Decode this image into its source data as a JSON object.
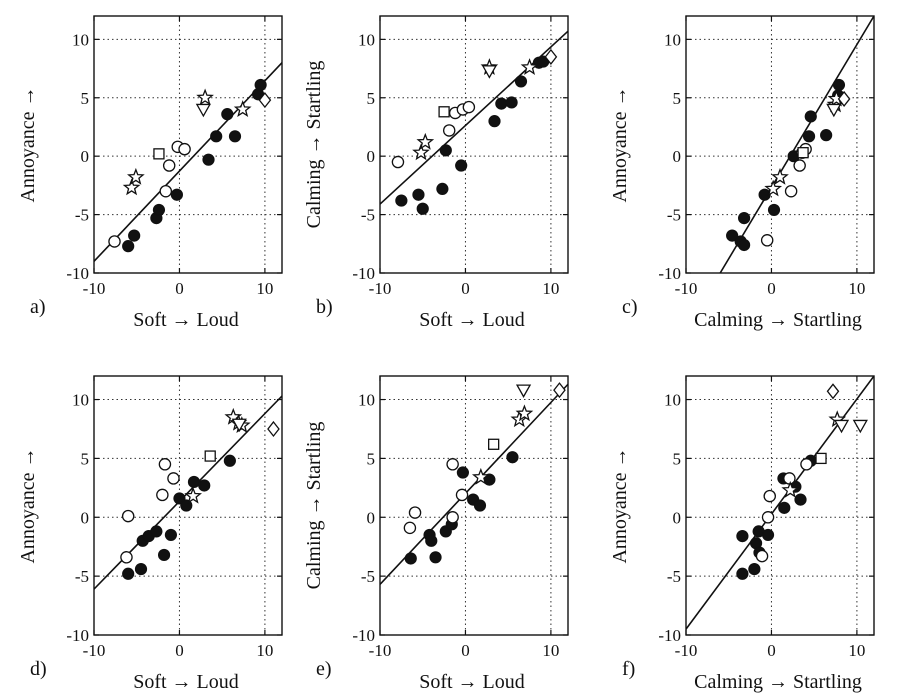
{
  "chart_data": [
    {
      "panel_label": "a)",
      "type": "scatter",
      "xlabel": "Soft → Loud",
      "ylabel": "Annoyance →",
      "xlim": [
        -10,
        12
      ],
      "ylim": [
        -10,
        12
      ],
      "xticks": [
        -10,
        0,
        10
      ],
      "yticks": [
        -10,
        -5,
        0,
        5,
        10
      ],
      "tick_labels_x": [
        "-10",
        "0",
        "10"
      ],
      "tick_labels_y": [
        "-10",
        "-5",
        "0",
        "5",
        "10"
      ],
      "grid": true,
      "fit_line": [
        [
          -10,
          -9
        ],
        [
          12,
          8
        ]
      ],
      "points": [
        {
          "m": "filled-circle",
          "x": -6.0,
          "y": -7.7
        },
        {
          "m": "filled-circle",
          "x": -5.3,
          "y": -6.8
        },
        {
          "m": "filled-circle",
          "x": -2.7,
          "y": -5.3
        },
        {
          "m": "filled-circle",
          "x": -2.4,
          "y": -4.6
        },
        {
          "m": "filled-circle",
          "x": -0.3,
          "y": -3.3
        },
        {
          "m": "filled-circle",
          "x": 3.4,
          "y": -0.3
        },
        {
          "m": "filled-circle",
          "x": 4.3,
          "y": 1.7
        },
        {
          "m": "filled-circle",
          "x": 5.6,
          "y": 3.6
        },
        {
          "m": "filled-circle",
          "x": 6.5,
          "y": 1.7
        },
        {
          "m": "filled-circle",
          "x": 9.2,
          "y": 5.3
        },
        {
          "m": "filled-circle",
          "x": 9.5,
          "y": 6.1
        },
        {
          "m": "open-circle",
          "x": -7.6,
          "y": -7.3
        },
        {
          "m": "open-circle",
          "x": -1.6,
          "y": -3.0
        },
        {
          "m": "open-circle",
          "x": -1.2,
          "y": -0.8
        },
        {
          "m": "open-circle",
          "x": -0.2,
          "y": 0.8
        },
        {
          "m": "open-circle",
          "x": 0.6,
          "y": 0.6
        },
        {
          "m": "open-square",
          "x": -2.4,
          "y": 0.2
        },
        {
          "m": "open-star",
          "x": -5.6,
          "y": -2.7
        },
        {
          "m": "open-star",
          "x": -5.1,
          "y": -1.8
        },
        {
          "m": "open-star",
          "x": 3.0,
          "y": 5.0
        },
        {
          "m": "open-star",
          "x": 7.4,
          "y": 4.0
        },
        {
          "m": "open-triangle-down",
          "x": 2.8,
          "y": 4.0
        },
        {
          "m": "open-diamond",
          "x": 10.0,
          "y": 4.8
        }
      ]
    },
    {
      "panel_label": "b)",
      "type": "scatter",
      "xlabel": "Soft → Loud",
      "ylabel": "Calming → Startling",
      "xlim": [
        -10,
        12
      ],
      "ylim": [
        -10,
        12
      ],
      "xticks": [
        -10,
        0,
        10
      ],
      "yticks": [
        -10,
        -5,
        0,
        5,
        10
      ],
      "tick_labels_x": [
        "-10",
        "0",
        "10"
      ],
      "tick_labels_y": [
        "-10",
        "-5",
        "0",
        "5",
        "10"
      ],
      "grid": true,
      "fit_line": [
        [
          -10,
          -4.1
        ],
        [
          12,
          10.7
        ]
      ],
      "points": [
        {
          "m": "filled-circle",
          "x": -7.5,
          "y": -3.8
        },
        {
          "m": "filled-circle",
          "x": -5.5,
          "y": -3.3
        },
        {
          "m": "filled-circle",
          "x": -5.0,
          "y": -4.5
        },
        {
          "m": "filled-circle",
          "x": -2.7,
          "y": -2.8
        },
        {
          "m": "filled-circle",
          "x": -2.3,
          "y": 0.5
        },
        {
          "m": "filled-circle",
          "x": -0.5,
          "y": -0.8
        },
        {
          "m": "filled-circle",
          "x": 3.4,
          "y": 3.0
        },
        {
          "m": "filled-circle",
          "x": 4.2,
          "y": 4.5
        },
        {
          "m": "filled-circle",
          "x": 5.4,
          "y": 4.6
        },
        {
          "m": "filled-circle",
          "x": 6.5,
          "y": 6.4
        },
        {
          "m": "filled-circle",
          "x": 8.6,
          "y": 8.0
        },
        {
          "m": "filled-circle",
          "x": 9.1,
          "y": 8.1
        },
        {
          "m": "open-circle",
          "x": -7.9,
          "y": -0.5
        },
        {
          "m": "open-circle",
          "x": -1.9,
          "y": 2.2
        },
        {
          "m": "open-circle",
          "x": -1.2,
          "y": 3.7
        },
        {
          "m": "open-circle",
          "x": -0.3,
          "y": 4.0
        },
        {
          "m": "open-circle",
          "x": 0.4,
          "y": 4.2
        },
        {
          "m": "open-square",
          "x": -2.5,
          "y": 3.8
        },
        {
          "m": "open-star",
          "x": -5.2,
          "y": 0.3
        },
        {
          "m": "open-star",
          "x": -4.7,
          "y": 1.2
        },
        {
          "m": "open-star",
          "x": 2.8,
          "y": 7.6
        },
        {
          "m": "open-star",
          "x": 7.5,
          "y": 7.6
        },
        {
          "m": "open-triangle-down",
          "x": 2.8,
          "y": 7.3
        },
        {
          "m": "open-diamond",
          "x": 10.0,
          "y": 8.5
        }
      ]
    },
    {
      "panel_label": "c)",
      "type": "scatter",
      "xlabel": "Calming → Startling",
      "ylabel": "Annoyance →",
      "xlim": [
        -10,
        12
      ],
      "ylim": [
        -10,
        12
      ],
      "xticks": [
        -10,
        0,
        10
      ],
      "yticks": [
        -10,
        -5,
        0,
        5,
        10
      ],
      "tick_labels_x": [
        "-10",
        "0",
        "10"
      ],
      "tick_labels_y": [
        "-10",
        "-5",
        "0",
        "5",
        "10"
      ],
      "grid": true,
      "fit_line": [
        [
          -6,
          -10
        ],
        [
          12,
          12
        ]
      ],
      "points": [
        {
          "m": "filled-circle",
          "x": -4.6,
          "y": -6.8
        },
        {
          "m": "filled-circle",
          "x": -3.6,
          "y": -7.3
        },
        {
          "m": "filled-circle",
          "x": -3.2,
          "y": -7.6
        },
        {
          "m": "filled-circle",
          "x": -3.2,
          "y": -5.3
        },
        {
          "m": "filled-circle",
          "x": -0.8,
          "y": -3.3
        },
        {
          "m": "filled-circle",
          "x": 0.3,
          "y": -4.6
        },
        {
          "m": "filled-circle",
          "x": 2.6,
          "y": 0.0
        },
        {
          "m": "filled-circle",
          "x": 4.4,
          "y": 1.7
        },
        {
          "m": "filled-circle",
          "x": 4.6,
          "y": 3.4
        },
        {
          "m": "filled-circle",
          "x": 6.4,
          "y": 1.8
        },
        {
          "m": "filled-circle",
          "x": 7.8,
          "y": 5.2
        },
        {
          "m": "filled-circle",
          "x": 7.9,
          "y": 6.1
        },
        {
          "m": "open-circle",
          "x": -0.5,
          "y": -7.2
        },
        {
          "m": "open-circle",
          "x": 2.3,
          "y": -3.0
        },
        {
          "m": "open-circle",
          "x": 3.3,
          "y": -0.8
        },
        {
          "m": "open-circle",
          "x": 3.6,
          "y": 0.3
        },
        {
          "m": "open-circle",
          "x": 4.0,
          "y": 0.6
        },
        {
          "m": "open-square",
          "x": 3.7,
          "y": 0.3
        },
        {
          "m": "open-star",
          "x": 0.2,
          "y": -2.8
        },
        {
          "m": "open-star",
          "x": 1.0,
          "y": -1.8
        },
        {
          "m": "open-star",
          "x": 7.5,
          "y": 4.4
        },
        {
          "m": "open-star",
          "x": 7.6,
          "y": 4.9
        },
        {
          "m": "open-triangle-down",
          "x": 7.3,
          "y": 4.0
        },
        {
          "m": "open-diamond",
          "x": 8.5,
          "y": 4.9
        }
      ]
    },
    {
      "panel_label": "d)",
      "type": "scatter",
      "xlabel": "Soft → Loud",
      "ylabel": "Annoyance →",
      "xlim": [
        -10,
        12
      ],
      "ylim": [
        -10,
        12
      ],
      "xticks": [
        -10,
        0,
        10
      ],
      "yticks": [
        -10,
        -5,
        0,
        5,
        10
      ],
      "tick_labels_x": [
        "-10",
        "0",
        "10"
      ],
      "tick_labels_y": [
        "-10",
        "-5",
        "0",
        "5",
        "10"
      ],
      "grid": true,
      "fit_line": [
        [
          -10,
          -6.1
        ],
        [
          12,
          10.3
        ]
      ],
      "points": [
        {
          "m": "filled-circle",
          "x": -6.0,
          "y": -4.8
        },
        {
          "m": "filled-circle",
          "x": -4.5,
          "y": -4.4
        },
        {
          "m": "filled-circle",
          "x": -4.3,
          "y": -2.0
        },
        {
          "m": "filled-circle",
          "x": -3.6,
          "y": -1.6
        },
        {
          "m": "filled-circle",
          "x": -2.7,
          "y": -1.2
        },
        {
          "m": "filled-circle",
          "x": -1.8,
          "y": -3.2
        },
        {
          "m": "filled-circle",
          "x": -1.0,
          "y": -1.5
        },
        {
          "m": "filled-circle",
          "x": 0.0,
          "y": 1.6
        },
        {
          "m": "filled-circle",
          "x": 0.8,
          "y": 1.0
        },
        {
          "m": "filled-circle",
          "x": 1.7,
          "y": 3.0
        },
        {
          "m": "filled-circle",
          "x": 2.9,
          "y": 2.7
        },
        {
          "m": "filled-circle",
          "x": 5.9,
          "y": 4.8
        },
        {
          "m": "open-circle",
          "x": -6.2,
          "y": -3.4
        },
        {
          "m": "open-circle",
          "x": -6.0,
          "y": 0.1
        },
        {
          "m": "open-circle",
          "x": -2.0,
          "y": 1.9
        },
        {
          "m": "open-circle",
          "x": -1.7,
          "y": 4.5
        },
        {
          "m": "open-circle",
          "x": -0.7,
          "y": 3.3
        },
        {
          "m": "open-square",
          "x": 3.6,
          "y": 5.2
        },
        {
          "m": "open-star",
          "x": 1.6,
          "y": 1.8
        },
        {
          "m": "open-star",
          "x": 6.3,
          "y": 8.5
        },
        {
          "m": "open-star",
          "x": 6.9,
          "y": 8.0
        },
        {
          "m": "open-star",
          "x": 7.3,
          "y": 7.8
        },
        {
          "m": "open-triangle-down",
          "x": 7.0,
          "y": 7.9
        },
        {
          "m": "open-diamond",
          "x": 11.0,
          "y": 7.5
        }
      ]
    },
    {
      "panel_label": "e)",
      "type": "scatter",
      "xlabel": "Soft → Loud",
      "ylabel": "Calming → Startling",
      "xlim": [
        -10,
        12
      ],
      "ylim": [
        -10,
        12
      ],
      "xticks": [
        -10,
        0,
        10
      ],
      "yticks": [
        -10,
        -5,
        0,
        5,
        10
      ],
      "tick_labels_x": [
        "-10",
        "0",
        "10"
      ],
      "tick_labels_y": [
        "-10",
        "-5",
        "0",
        "5",
        "10"
      ],
      "grid": true,
      "fit_line": [
        [
          -10,
          -5.7
        ],
        [
          12,
          11.3
        ]
      ],
      "points": [
        {
          "m": "filled-circle",
          "x": -6.4,
          "y": -3.5
        },
        {
          "m": "filled-circle",
          "x": -4.2,
          "y": -1.5
        },
        {
          "m": "filled-circle",
          "x": -4.0,
          "y": -2.0
        },
        {
          "m": "filled-circle",
          "x": -3.5,
          "y": -3.4
        },
        {
          "m": "filled-circle",
          "x": -2.3,
          "y": -1.2
        },
        {
          "m": "filled-circle",
          "x": -1.6,
          "y": -0.6
        },
        {
          "m": "filled-circle",
          "x": -0.3,
          "y": 3.8
        },
        {
          "m": "filled-circle",
          "x": 0.9,
          "y": 1.5
        },
        {
          "m": "filled-circle",
          "x": 1.7,
          "y": 1.0
        },
        {
          "m": "filled-circle",
          "x": 2.8,
          "y": 3.2
        },
        {
          "m": "filled-circle",
          "x": 5.5,
          "y": 5.1
        },
        {
          "m": "open-circle",
          "x": -6.5,
          "y": -0.9
        },
        {
          "m": "open-circle",
          "x": -5.9,
          "y": 0.4
        },
        {
          "m": "open-circle",
          "x": -1.5,
          "y": 0.0
        },
        {
          "m": "open-circle",
          "x": -1.5,
          "y": 4.5
        },
        {
          "m": "open-circle",
          "x": -0.4,
          "y": 1.9
        },
        {
          "m": "open-square",
          "x": 3.3,
          "y": 6.2
        },
        {
          "m": "open-star",
          "x": 1.8,
          "y": 3.4
        },
        {
          "m": "open-star",
          "x": 6.3,
          "y": 8.3
        },
        {
          "m": "open-star",
          "x": 6.9,
          "y": 8.8
        },
        {
          "m": "open-triangle-down",
          "x": 6.8,
          "y": 10.8
        },
        {
          "m": "open-diamond",
          "x": 11.0,
          "y": 10.8
        }
      ]
    },
    {
      "panel_label": "f)",
      "type": "scatter",
      "xlabel": "Calming → Startling",
      "ylabel": "Annoyance →",
      "xlim": [
        -10,
        12
      ],
      "ylim": [
        -10,
        12
      ],
      "xticks": [
        -10,
        0,
        10
      ],
      "yticks": [
        -10,
        -5,
        0,
        5,
        10
      ],
      "tick_labels_x": [
        "-10",
        "0",
        "10"
      ],
      "tick_labels_y": [
        "-10",
        "-5",
        "0",
        "5",
        "10"
      ],
      "grid": true,
      "fit_line": [
        [
          -10,
          -9.5
        ],
        [
          12,
          12
        ]
      ],
      "points": [
        {
          "m": "filled-circle",
          "x": -3.4,
          "y": -1.6
        },
        {
          "m": "filled-circle",
          "x": -3.4,
          "y": -4.8
        },
        {
          "m": "filled-circle",
          "x": -2.0,
          "y": -4.4
        },
        {
          "m": "filled-circle",
          "x": -1.8,
          "y": -2.2
        },
        {
          "m": "filled-circle",
          "x": -1.5,
          "y": -1.2
        },
        {
          "m": "filled-circle",
          "x": -1.4,
          "y": -3.0
        },
        {
          "m": "filled-circle",
          "x": -0.4,
          "y": -1.5
        },
        {
          "m": "filled-circle",
          "x": 1.4,
          "y": 3.3
        },
        {
          "m": "filled-circle",
          "x": 1.5,
          "y": 0.8
        },
        {
          "m": "filled-circle",
          "x": 2.8,
          "y": 2.6
        },
        {
          "m": "filled-circle",
          "x": 3.4,
          "y": 1.5
        },
        {
          "m": "filled-circle",
          "x": 4.6,
          "y": 4.8
        },
        {
          "m": "open-circle",
          "x": -1.1,
          "y": -3.3
        },
        {
          "m": "open-circle",
          "x": -0.4,
          "y": 0.0
        },
        {
          "m": "open-circle",
          "x": -0.2,
          "y": 1.8
        },
        {
          "m": "open-circle",
          "x": 2.1,
          "y": 3.3
        },
        {
          "m": "open-circle",
          "x": 4.1,
          "y": 4.5
        },
        {
          "m": "open-square",
          "x": 5.8,
          "y": 5.0
        },
        {
          "m": "open-star",
          "x": 2.2,
          "y": 2.3
        },
        {
          "m": "open-star",
          "x": 7.7,
          "y": 8.3
        },
        {
          "m": "open-triangle-down",
          "x": 8.2,
          "y": 7.8
        },
        {
          "m": "open-triangle-down",
          "x": 10.4,
          "y": 7.8
        },
        {
          "m": "open-diamond",
          "x": 7.2,
          "y": 10.7
        }
      ]
    }
  ]
}
